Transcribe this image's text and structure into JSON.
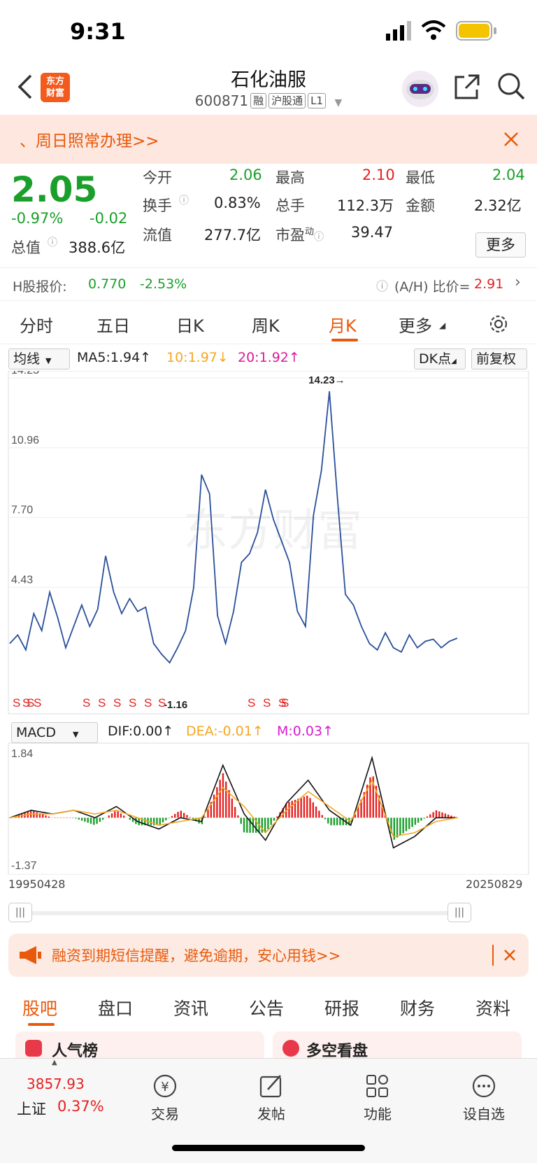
{
  "status": {
    "time": "9:31"
  },
  "nav": {
    "title": "石化油服",
    "code": "600871",
    "tags": [
      "融",
      "沪股通",
      "L1"
    ],
    "logo": "东方\n财富"
  },
  "banner1": {
    "text": "、周日照常办理>>"
  },
  "quote": {
    "price": "2.05",
    "change_pct": "-0.97%",
    "change": "-0.02",
    "open_label": "今开",
    "open": "2.06",
    "high_label": "最高",
    "high": "2.10",
    "low_label": "最低",
    "low": "2.04",
    "turnover_label": "换手",
    "turnover": "0.83%",
    "volume_label": "总手",
    "volume": "112.3万",
    "amount_label": "金额",
    "amount": "2.32亿",
    "mcap_label": "总值",
    "mcap": "388.6亿",
    "float_label": "流值",
    "float": "277.7亿",
    "pe_label": "市盈",
    "pe_sup": "动",
    "pe": "39.47",
    "more": "更多"
  },
  "hshare": {
    "label": "H股报价:",
    "price": "0.770",
    "pct": "-2.53%",
    "ah_label": "(A/H) 比价=",
    "ah": "2.91"
  },
  "tabs": [
    "分时",
    "五日",
    "日K",
    "周K",
    "月K",
    "更多"
  ],
  "active_tab": "月K",
  "chart": {
    "ma_select": "均线",
    "ma5": "MA5:1.94↑",
    "ma10": "10:1.97↓",
    "ma20": "20:1.92↑",
    "dk": "DK点",
    "fq": "前复权",
    "y_labels": [
      "14.23",
      "10.96",
      "7.70",
      "4.43"
    ],
    "max_label": "14.23→",
    "min_label": "-1.16",
    "watermark": "东方财富",
    "signals": [
      "S",
      "S",
      "S",
      "S",
      "S",
      "S",
      "S",
      "S",
      "S",
      "S",
      "S",
      "S",
      "S",
      "S"
    ],
    "macd_select": "MACD",
    "dif": "DIF:0.00↑",
    "dea": "DEA:-0.01↑",
    "m": "M:0.03↑",
    "macd_top": "1.84",
    "macd_bottom": "-1.37",
    "date_start": "19950428",
    "date_end": "20250829",
    "colors": {
      "price_line": "#2a4f9a",
      "ma10": "#f5a623",
      "ma20": "#d81b9c",
      "up": "#e62020",
      "down": "#1a9f2a"
    }
  },
  "chart_data": {
    "type": "line",
    "title": "",
    "x_range": [
      "19950428",
      "20250829"
    ],
    "ylim": [
      -1.16,
      14.23
    ],
    "series": [
      {
        "name": "",
        "values": [
          1.8,
          2.2,
          1.5,
          3.2,
          2.4,
          4.2,
          3.0,
          1.6,
          2.6,
          3.6,
          2.6,
          3.4,
          5.9,
          4.2,
          3.2,
          3.9,
          3.3,
          3.5,
          1.8,
          1.3,
          0.9,
          1.6,
          2.4,
          4.4,
          9.7,
          8.8,
          3.1,
          1.8,
          3.3,
          5.6,
          6.0,
          7.0,
          9.0,
          7.6,
          6.6,
          5.6,
          3.3,
          2.6,
          7.8,
          9.9,
          13.6,
          8.6,
          4.1,
          3.6,
          2.6,
          1.8,
          1.5,
          2.3,
          1.6,
          1.4,
          2.2,
          1.6,
          1.9,
          2.0,
          1.6,
          1.9,
          2.05
        ]
      }
    ],
    "macd": {
      "ylim": [
        -1.37,
        1.84
      ],
      "dif": [
        0.0,
        0.2,
        0.1,
        0.2,
        0.0,
        0.3,
        -0.1,
        -0.3,
        0.0,
        -0.1,
        1.4,
        0.1,
        -0.6,
        0.4,
        1.0,
        0.2,
        -0.2,
        1.6,
        -0.8,
        -0.5,
        0.0,
        0.0
      ],
      "dea": [
        0.0,
        0.1,
        0.1,
        0.2,
        0.1,
        0.2,
        0.0,
        -0.2,
        -0.1,
        0.0,
        0.8,
        0.3,
        -0.4,
        0.2,
        0.7,
        0.3,
        -0.1,
        1.0,
        -0.5,
        -0.4,
        -0.1,
        0.0
      ]
    }
  },
  "banner2": {
    "text": "融资到期短信提醒，避免逾期，安心用钱>>"
  },
  "tabs2": [
    "股吧",
    "盘口",
    "资讯",
    "公告",
    "研报",
    "财务",
    "资料"
  ],
  "peek": {
    "left": "人气榜",
    "right": "多空看盘"
  },
  "bottom": {
    "index_value": "3857.93",
    "index_name": "上证",
    "index_pct": "0.37%",
    "items": [
      "交易",
      "发帖",
      "功能",
      "设自选"
    ]
  }
}
